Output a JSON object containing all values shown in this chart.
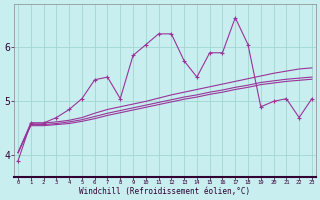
{
  "xlabel": "Windchill (Refroidissement éolien,°C)",
  "bg_color": "#c8eef0",
  "grid_color": "#a0d8d0",
  "line_color": "#993399",
  "x_values": [
    0,
    1,
    2,
    3,
    4,
    5,
    6,
    7,
    8,
    9,
    10,
    11,
    12,
    13,
    14,
    15,
    16,
    17,
    18,
    19,
    20,
    21,
    22,
    23
  ],
  "series_jagged": [
    3.9,
    4.6,
    4.6,
    4.7,
    4.85,
    5.05,
    5.4,
    5.45,
    5.05,
    5.85,
    6.05,
    6.25,
    6.25,
    5.75,
    5.45,
    5.9,
    5.9,
    6.55,
    6.05,
    4.9,
    5.0,
    5.05,
    4.7,
    5.05
  ],
  "series_smooth1": [
    4.05,
    4.6,
    4.6,
    4.62,
    4.65,
    4.7,
    4.78,
    4.85,
    4.9,
    4.95,
    5.0,
    5.06,
    5.12,
    5.17,
    5.22,
    5.27,
    5.32,
    5.37,
    5.42,
    5.47,
    5.52,
    5.56,
    5.6,
    5.62
  ],
  "series_smooth2": [
    4.05,
    4.57,
    4.57,
    4.59,
    4.62,
    4.66,
    4.72,
    4.78,
    4.83,
    4.88,
    4.93,
    4.98,
    5.03,
    5.08,
    5.12,
    5.17,
    5.21,
    5.26,
    5.3,
    5.35,
    5.38,
    5.41,
    5.43,
    5.45
  ],
  "series_smooth3": [
    4.05,
    4.55,
    4.55,
    4.57,
    4.59,
    4.63,
    4.68,
    4.74,
    4.79,
    4.84,
    4.89,
    4.94,
    4.99,
    5.04,
    5.08,
    5.13,
    5.17,
    5.22,
    5.26,
    5.31,
    5.34,
    5.37,
    5.39,
    5.41
  ],
  "ylim_min": 3.6,
  "ylim_max": 6.8,
  "ytick_positions": [
    4,
    5,
    6
  ],
  "xlim_min": -0.3,
  "xlim_max": 23.3
}
